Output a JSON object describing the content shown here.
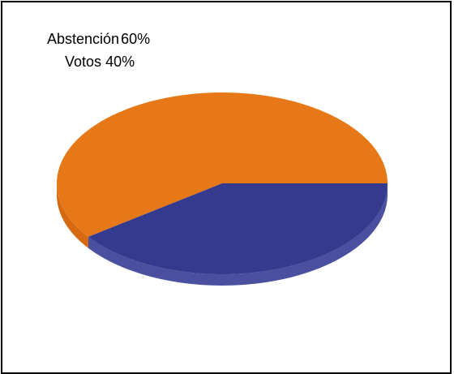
{
  "chart_data": {
    "type": "pie",
    "style": "3d",
    "slices": [
      {
        "label": "Abstención",
        "value": 60,
        "display": "60%",
        "color": "#E77817",
        "side_color": "#D76A10"
      },
      {
        "label": "Votos",
        "value": 40,
        "display": "40%",
        "color": "#343A8E",
        "side_color": "#4A4FA0"
      }
    ],
    "legend": "top-left",
    "grid": false
  }
}
